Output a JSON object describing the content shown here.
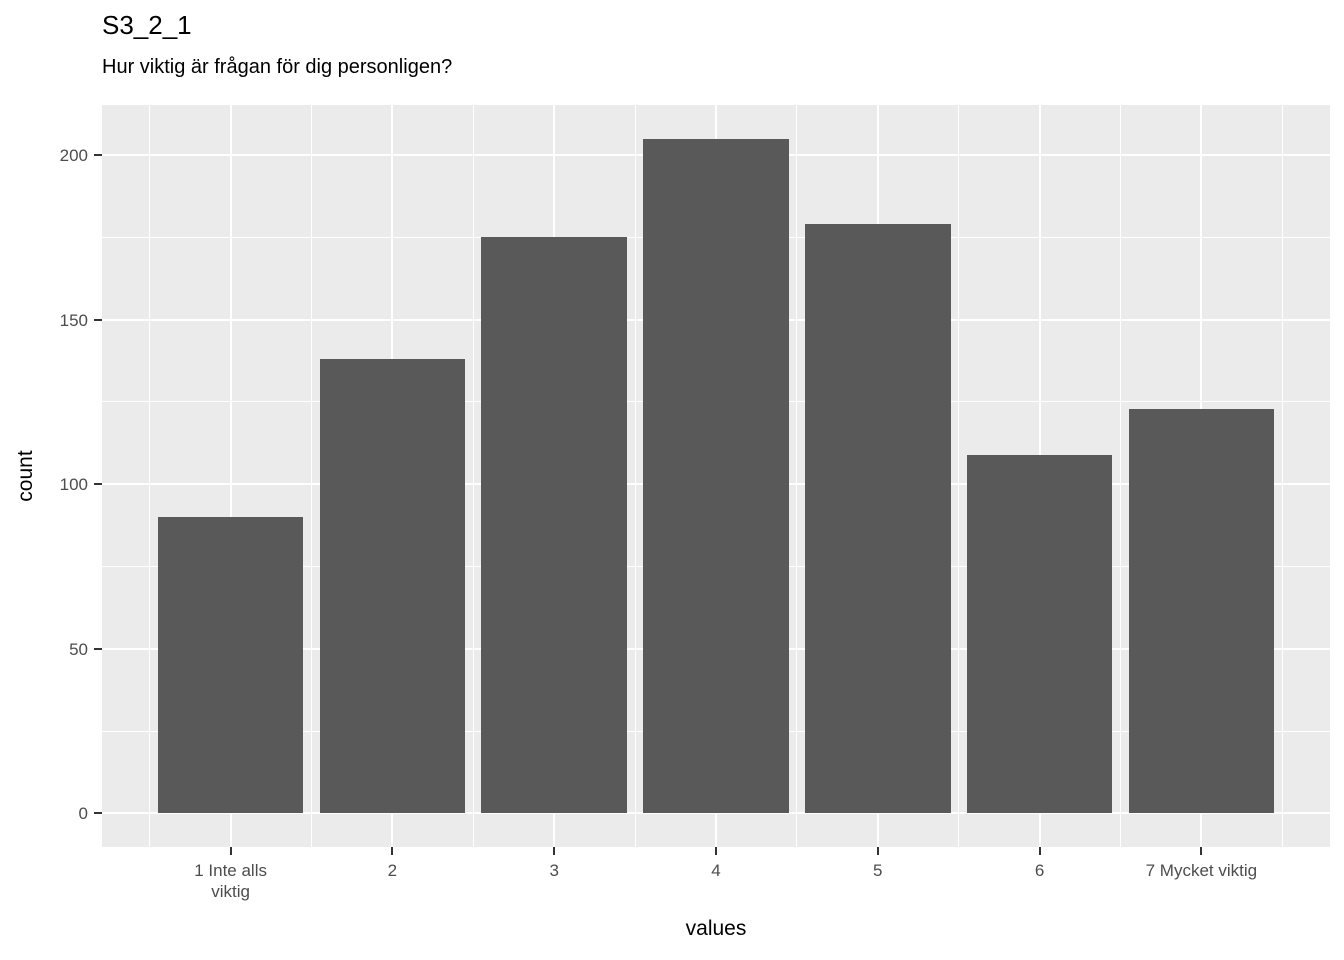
{
  "title": "S3_2_1",
  "subtitle": "Hur viktig är frågan för dig personligen?",
  "chart_data": {
    "type": "bar",
    "title": "S3_2_1",
    "subtitle": "Hur viktig är frågan för dig personligen?",
    "xlabel": "values",
    "ylabel": "count",
    "categories": [
      "1 Inte alls\nviktig",
      "2",
      "3",
      "4",
      "5",
      "6",
      "7 Mycket viktig"
    ],
    "x_positions": [
      1,
      2,
      3,
      4,
      5,
      6,
      7
    ],
    "values": [
      90,
      138,
      175,
      205,
      179,
      109,
      123
    ],
    "y_ticks": [
      0,
      50,
      100,
      150,
      200
    ],
    "y_minor_gridlines": [
      25,
      75,
      125,
      175
    ],
    "x_minor_gridlines": [
      0.5,
      1.5,
      2.5,
      3.5,
      4.5,
      5.5,
      6.5,
      7.5
    ],
    "xlim": [
      0.205,
      7.795
    ],
    "ylim": [
      -10.25,
      215.25
    ],
    "bar_width": 0.9,
    "grid": true,
    "legend": "none",
    "colors": {
      "bar": "#595959",
      "panel_bg": "#EBEBEB",
      "grid": "#FFFFFF",
      "axis_text": "#4D4D4D",
      "tick_mark": "#333333",
      "title_text": "#000000",
      "page_bg": "#FFFFFF"
    }
  }
}
